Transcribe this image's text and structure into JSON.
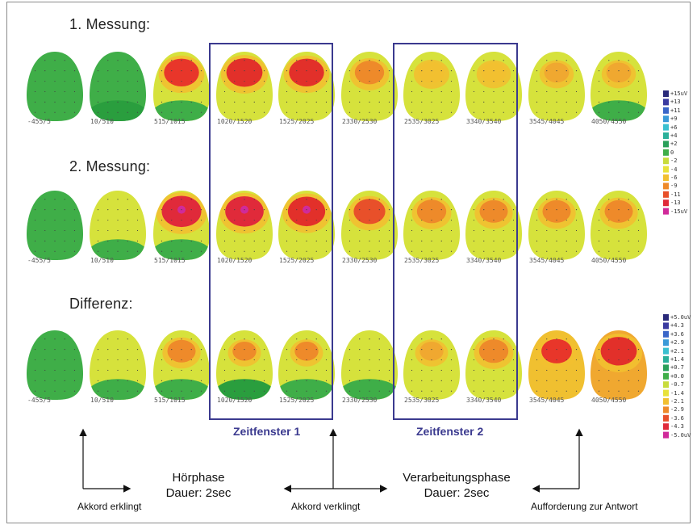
{
  "rows": [
    {
      "title": "1. Messung:",
      "maps": [
        {
          "label": "-455/5",
          "base": "#3fae48",
          "hot": null,
          "intensity": 0,
          "bottom": null
        },
        {
          "label": "10/510",
          "base": "#3fae48",
          "hot": "#3fae48",
          "intensity": 0,
          "bottom": "#2a9e3e"
        },
        {
          "label": "515/1015",
          "base": "#d6e23c",
          "hot": "#e8362a",
          "intensity": 0.8,
          "bottom": "#3fae48"
        },
        {
          "label": "1020/1520",
          "base": "#d6e23c",
          "hot": "#e2302a",
          "intensity": 0.85,
          "bottom": null
        },
        {
          "label": "1525/2025",
          "base": "#d6e23c",
          "hot": "#e2302a",
          "intensity": 0.8,
          "bottom": null
        },
        {
          "label": "2330/2530",
          "base": "#d6e23c",
          "hot": "#ee8a2a",
          "intensity": 0.55,
          "bottom": null
        },
        {
          "label": "2535/3025",
          "base": "#d6e23c",
          "hot": "#f2c030",
          "intensity": 0.4,
          "bottom": null
        },
        {
          "label": "3340/3540",
          "base": "#d6e23c",
          "hot": "#f2c030",
          "intensity": 0.35,
          "bottom": null
        },
        {
          "label": "3545/4045",
          "base": "#d6e23c",
          "hot": "#f0a830",
          "intensity": 0.35,
          "bottom": null
        },
        {
          "label": "4050/4550",
          "base": "#d6e23c",
          "hot": "#f0a830",
          "intensity": 0.35,
          "bottom": "#3fae48"
        }
      ]
    },
    {
      "title": "2. Messung:",
      "maps": [
        {
          "label": "-455/5",
          "base": "#3fae48",
          "hot": null,
          "intensity": 0,
          "bottom": null
        },
        {
          "label": "10/510",
          "base": "#d6e23c",
          "hot": "#d6e23c",
          "intensity": 0,
          "bottom": "#3fae48"
        },
        {
          "label": "515/1015",
          "base": "#d6e23c",
          "hot": "#e02a3a",
          "intensity": 1.0,
          "bottom": "#3fae48"
        },
        {
          "label": "1020/1520",
          "base": "#d6e23c",
          "hot": "#e02a3a",
          "intensity": 0.95,
          "bottom": null
        },
        {
          "label": "1525/2025",
          "base": "#d6e23c",
          "hot": "#e2302a",
          "intensity": 0.9,
          "bottom": null
        },
        {
          "label": "2330/2530",
          "base": "#d6e23c",
          "hot": "#e8502a",
          "intensity": 0.65,
          "bottom": null
        },
        {
          "label": "2535/3025",
          "base": "#d6e23c",
          "hot": "#ee8a2a",
          "intensity": 0.55,
          "bottom": null
        },
        {
          "label": "3340/3540",
          "base": "#d6e23c",
          "hot": "#ee8a2a",
          "intensity": 0.5,
          "bottom": null
        },
        {
          "label": "3545/4045",
          "base": "#d6e23c",
          "hot": "#ee8a2a",
          "intensity": 0.5,
          "bottom": null
        },
        {
          "label": "4050/4550",
          "base": "#d6e23c",
          "hot": "#ee8a2a",
          "intensity": 0.5,
          "bottom": null
        }
      ]
    },
    {
      "title": "Differenz:",
      "maps": [
        {
          "label": "-455/5",
          "base": "#3fae48",
          "hot": null,
          "intensity": 0,
          "bottom": null
        },
        {
          "label": "10/510",
          "base": "#d6e23c",
          "hot": "#d6e23c",
          "intensity": 0,
          "bottom": "#3fae48"
        },
        {
          "label": "515/1015",
          "base": "#d6e23c",
          "hot": "#ee8a2a",
          "intensity": 0.5,
          "bottom": "#3fae48"
        },
        {
          "label": "1020/1520",
          "base": "#d6e23c",
          "hot": "#ee8a2a",
          "intensity": 0.3,
          "bottom": "#2a9e3e"
        },
        {
          "label": "1525/2025",
          "base": "#d6e23c",
          "hot": "#ee8a2a",
          "intensity": 0.3,
          "bottom": "#3fae48"
        },
        {
          "label": "2330/2530",
          "base": "#d6e23c",
          "hot": "#d6e23c",
          "intensity": 0,
          "bottom": "#3fae48"
        },
        {
          "label": "2535/3025",
          "base": "#d6e23c",
          "hot": "#f0a830",
          "intensity": 0.3,
          "bottom": null
        },
        {
          "label": "3340/3540",
          "base": "#d6e23c",
          "hot": "#ee8a2a",
          "intensity": 0.55,
          "bottom": null
        },
        {
          "label": "3545/4045",
          "base": "#f0c030",
          "hot": "#e8362a",
          "intensity": 0.6,
          "bottom": null
        },
        {
          "label": "4050/4550",
          "base": "#f0a830",
          "hot": "#e2302a",
          "intensity": 0.85,
          "bottom": null
        }
      ]
    }
  ],
  "windows": [
    {
      "label": "Zeitfenster 1"
    },
    {
      "label": "Zeitfenster 2"
    }
  ],
  "scales": [
    {
      "labels": [
        "+15uV",
        "+13",
        "+11",
        "+9",
        "+6",
        "+4",
        "+2",
        "0",
        "-2",
        "-4",
        "-6",
        "-9",
        "-11",
        "-13",
        "-15uV"
      ],
      "colors": [
        "#2a2a7a",
        "#3a3aa0",
        "#3a66c8",
        "#3a9ad8",
        "#3ac0d0",
        "#2ab09a",
        "#2aa05a",
        "#3fae48",
        "#c8dc3c",
        "#e8e23a",
        "#f2c030",
        "#ee8a2a",
        "#e8502a",
        "#e02a3a",
        "#d02a9a"
      ]
    },
    {
      "labels": [
        "+5.0uV",
        "+4.3",
        "+3.6",
        "+2.9",
        "+2.1",
        "+1.4",
        "+0.7",
        "+0.0",
        "-0.7",
        "-1.4",
        "-2.1",
        "-2.9",
        "-3.6",
        "-4.3",
        "-5.0uV"
      ],
      "colors": [
        "#2a2a7a",
        "#3a3aa0",
        "#3a66c8",
        "#3a9ad8",
        "#3ac0d0",
        "#2ab09a",
        "#2aa05a",
        "#3fae48",
        "#c8dc3c",
        "#e8e23a",
        "#f2c030",
        "#ee8a2a",
        "#e8502a",
        "#e02a3a",
        "#d02a9a"
      ]
    }
  ],
  "phases": [
    {
      "title": "Hörphase",
      "duration": "Dauer: 2sec"
    },
    {
      "title": "Verarbeitungsphase",
      "duration": "Dauer: 2sec"
    }
  ],
  "captions": {
    "chord_sounds": "Akkord erklingt",
    "chord_fades": "Akkord verklingt",
    "answer_prompt": "Aufforderung zur Antwort"
  }
}
